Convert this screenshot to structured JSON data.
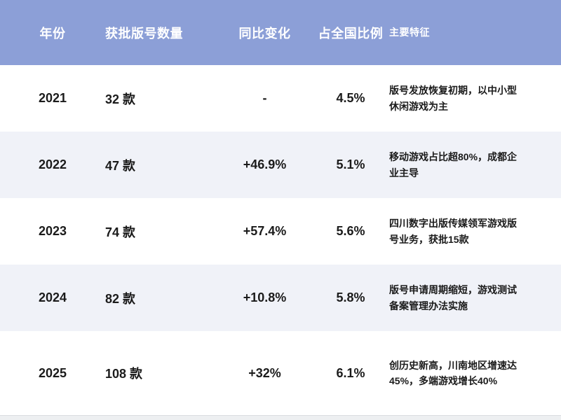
{
  "chart_data": {
    "type": "table",
    "title": "",
    "columns": [
      "年份",
      "获批版号数量",
      "同比变化",
      "占全国比例",
      "主要特征"
    ],
    "years": [
      2021,
      2022,
      2023,
      2024,
      2025
    ],
    "approved_counts": [
      32,
      47,
      74,
      82,
      108
    ],
    "yoy_change_percent": [
      null,
      46.9,
      57.4,
      10.8,
      32
    ],
    "national_share_percent": [
      4.5,
      5.1,
      5.6,
      5.8,
      6.1
    ]
  },
  "colors": {
    "header_bg": "#8C9FD7",
    "header_text": "#FFFFFF",
    "row_bg": "#FFFFFF",
    "row_alt_bg": "#F0F2F8",
    "body_text": "#1B1B1B",
    "footer_strip_bg": "#EDEFF1"
  },
  "table": {
    "headers": {
      "year": "年份",
      "count": "获批版号数量",
      "yoy": "同比变化",
      "share": "占全国比例",
      "features": "主要特征"
    },
    "rows": [
      {
        "year": "2021",
        "count": "32 款",
        "yoy": "-",
        "share": "4.5%",
        "features": "版号发放恢复初期，以中小型休闲游戏为主"
      },
      {
        "year": "2022",
        "count": "47 款",
        "yoy": "+46.9%",
        "share": "5.1%",
        "features": "移动游戏占比超80%，成都企业主导"
      },
      {
        "year": "2023",
        "count": "74 款",
        "yoy": "+57.4%",
        "share": "5.6%",
        "features": "四川数字出版传媒领军游戏版号业务，获批15款"
      },
      {
        "year": "2024",
        "count": "82 款",
        "yoy": "+10.8%",
        "share": "5.8%",
        "features": "版号申请周期缩短，游戏测试备案管理办法实施"
      },
      {
        "year": "2025",
        "count": "108 款",
        "yoy": "+32%",
        "share": "6.1%",
        "features": "创历史新高，川南地区增速达45%，多端游戏增长40%"
      }
    ]
  }
}
